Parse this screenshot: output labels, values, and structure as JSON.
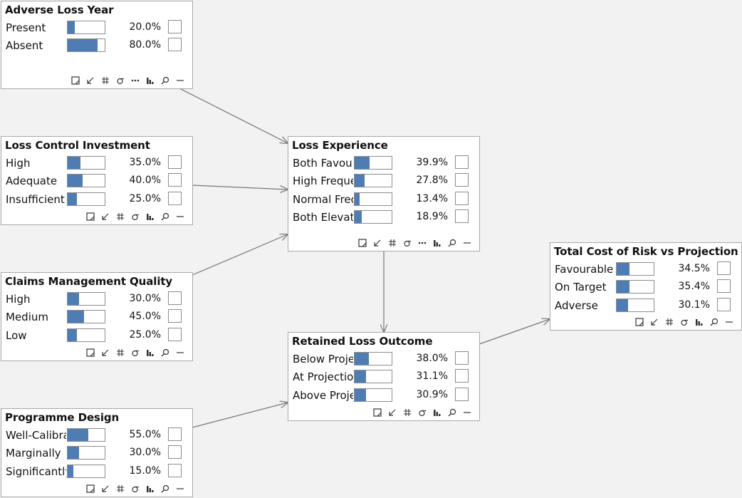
{
  "nodes": {
    "adverse": {
      "title": "Adverse Loss Year",
      "states": [
        {
          "label": "Present",
          "value": 0.2,
          "pct": "20.0%"
        },
        {
          "label": "Absent",
          "value": 0.8,
          "pct": "80.0%"
        }
      ]
    },
    "lci": {
      "title": "Loss Control Investment",
      "states": [
        {
          "label": "High",
          "value": 0.35,
          "pct": "35.0%"
        },
        {
          "label": "Adequate",
          "value": 0.4,
          "pct": "40.0%"
        },
        {
          "label": "Insufficient",
          "value": 0.25,
          "pct": "25.0%"
        }
      ]
    },
    "cmq": {
      "title": "Claims Management Quality",
      "states": [
        {
          "label": "High",
          "value": 0.3,
          "pct": "30.0%"
        },
        {
          "label": "Medium",
          "value": 0.45,
          "pct": "45.0%"
        },
        {
          "label": "Low",
          "value": 0.25,
          "pct": "25.0%"
        }
      ]
    },
    "pd": {
      "title": "Programme Design",
      "states": [
        {
          "label": "Well-Calibrated",
          "value": 0.55,
          "pct": "55.0%"
        },
        {
          "label": "Marginally",
          "value": 0.3,
          "pct": "30.0%"
        },
        {
          "label": "Significantly",
          "value": 0.15,
          "pct": "15.0%"
        }
      ]
    },
    "le": {
      "title": "Loss Experience",
      "states": [
        {
          "label": "Both Favourable",
          "value": 0.399,
          "pct": "39.9%"
        },
        {
          "label": "High Frequency",
          "value": 0.278,
          "pct": "27.8%"
        },
        {
          "label": "Normal Frequency",
          "value": 0.134,
          "pct": "13.4%"
        },
        {
          "label": "Both Elevated",
          "value": 0.189,
          "pct": "18.9%"
        }
      ]
    },
    "rlo": {
      "title": "Retained Loss Outcome",
      "states": [
        {
          "label": "Below Projection",
          "value": 0.38,
          "pct": "38.0%"
        },
        {
          "label": "At Projection",
          "value": 0.311,
          "pct": "31.1%"
        },
        {
          "label": "Above Projection",
          "value": 0.309,
          "pct": "30.9%"
        }
      ]
    },
    "tcr": {
      "title": "Total Cost of Risk vs Projection",
      "states": [
        {
          "label": "Favourable",
          "value": 0.345,
          "pct": "34.5%"
        },
        {
          "label": "On Target",
          "value": 0.354,
          "pct": "35.4%"
        },
        {
          "label": "Adverse",
          "value": 0.301,
          "pct": "30.1%"
        }
      ]
    }
  },
  "colors": {
    "bar_fill": "#4f7db3",
    "edge": "#777777",
    "background": "#f2f2f2"
  },
  "toolbar_icons": [
    "resize-icon",
    "arrow-icon",
    "hash-icon",
    "sigma-icon",
    "more-icon",
    "bar-chart-icon",
    "search-icon",
    "minimize-icon"
  ]
}
